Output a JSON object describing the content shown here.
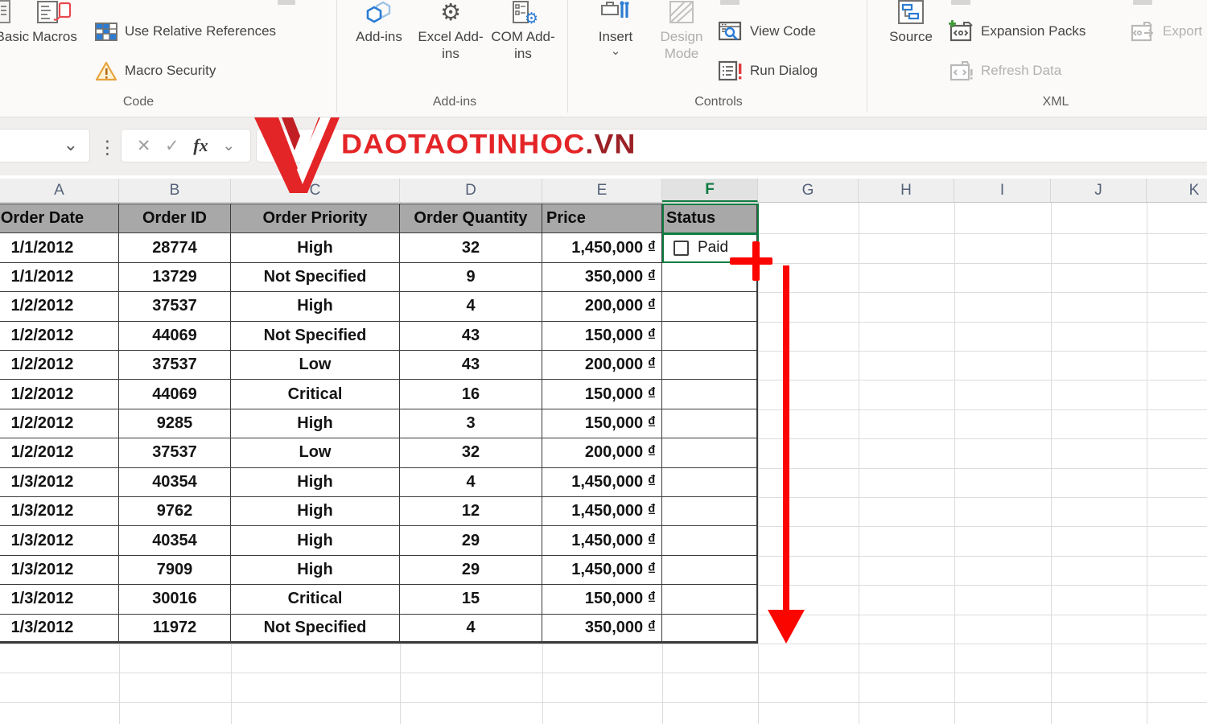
{
  "ribbon": {
    "code": {
      "visual_basic": "Visual Basic",
      "macros": "Macros",
      "use_relative_references": "Use Relative References",
      "macro_security": "Macro Security",
      "group_label": "Code"
    },
    "addins": {
      "add_ins": "Add-ins",
      "excel_add_ins": "Excel Add-ins",
      "com_add_ins": "COM Add-ins",
      "group_label": "Add-ins"
    },
    "controls": {
      "insert": "Insert",
      "design_mode": "Design Mode",
      "view_code": "View Code",
      "run_dialog": "Run Dialog",
      "group_label": "Controls"
    },
    "xml": {
      "source": "Source",
      "expansion_packs": "Expansion Packs",
      "refresh_data": "Refresh Data",
      "export": "Export",
      "group_label": "XML"
    }
  },
  "formula_bar": {
    "name_box_value": "",
    "formula_value": ""
  },
  "icons": {
    "cancel": "✕",
    "enter": "✓",
    "fx": "fx",
    "dropdown": "⌄",
    "kebab": "⋮",
    "gear": "⚙"
  },
  "watermark": {
    "brand_main": "DAOTAOTINHOC",
    "brand_suffix": ".VN",
    "color_main": "#e42527",
    "color_suffix": "#9b2026"
  },
  "sheet": {
    "columns": [
      "A",
      "B",
      "C",
      "D",
      "E",
      "F",
      "G",
      "H",
      "I",
      "J",
      "K"
    ],
    "selected_column": "F",
    "table": {
      "headers": [
        "Order Date",
        "Order ID",
        "Order Priority",
        "Order Quantity",
        "Price",
        "Status"
      ],
      "rows": [
        [
          "1/1/2012",
          "28774",
          "High",
          "32",
          "1,450,000 ₫"
        ],
        [
          "1/1/2012",
          "13729",
          "Not Specified",
          "9",
          "350,000 ₫"
        ],
        [
          "1/2/2012",
          "37537",
          "High",
          "4",
          "200,000 ₫"
        ],
        [
          "1/2/2012",
          "44069",
          "Not Specified",
          "43",
          "150,000 ₫"
        ],
        [
          "1/2/2012",
          "37537",
          "Low",
          "43",
          "200,000 ₫"
        ],
        [
          "1/2/2012",
          "44069",
          "Critical",
          "16",
          "150,000 ₫"
        ],
        [
          "1/2/2012",
          "9285",
          "High",
          "3",
          "150,000 ₫"
        ],
        [
          "1/2/2012",
          "37537",
          "Low",
          "32",
          "200,000 ₫"
        ],
        [
          "1/3/2012",
          "40354",
          "High",
          "4",
          "1,450,000 ₫"
        ],
        [
          "1/3/2012",
          "9762",
          "High",
          "12",
          "1,450,000 ₫"
        ],
        [
          "1/3/2012",
          "40354",
          "High",
          "29",
          "1,450,000 ₫"
        ],
        [
          "1/3/2012",
          "7909",
          "High",
          "29",
          "1,450,000 ₫"
        ],
        [
          "1/3/2012",
          "30016",
          "Critical",
          "15",
          "150,000 ₫"
        ],
        [
          "1/3/2012",
          "11972",
          "Not Specified",
          "4",
          "350,000 ₫"
        ]
      ],
      "checkbox": {
        "label": "Paid",
        "checked": false
      }
    },
    "selection": {
      "range": "F1:F2"
    },
    "annotation_colors": {
      "red": "#fa0500",
      "selection_green": "#107C41"
    }
  }
}
